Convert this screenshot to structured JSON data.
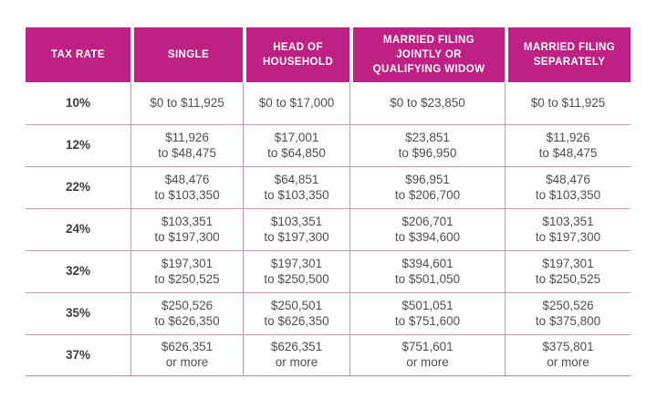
{
  "theme": {
    "accent": "#be2183",
    "header_text": "#ffffff",
    "body_text": "#4e4e4e",
    "rate_text": "#3d3d3d",
    "grid": "#cf94ba",
    "grid_dark": "#bc89a6"
  },
  "chart_data": {
    "type": "table",
    "columns": [
      "TAX RATE",
      "SINGLE",
      "HEAD OF\nHOUSEHOLD",
      "MARRIED FILING\nJOINTLY OR\nQUALIFYING WIDOW",
      "MARRIED FILING\nSEPARATELY"
    ],
    "rows": [
      [
        "10%",
        "$0 to $11,925",
        "$0 to $17,000",
        "$0 to $23,850",
        "$0 to $11,925"
      ],
      [
        "12%",
        "$11,926\nto $48,475",
        "$17,001\nto $64,850",
        "$23,851\nto $96,950",
        "$11,926\nto $48,475"
      ],
      [
        "22%",
        "$48,476\nto $103,350",
        "$64,851\nto $103,350",
        "$96,951\nto $206,700",
        "$48,476\nto $103,350"
      ],
      [
        "24%",
        "$103,351\nto $197,300",
        "$103,351\nto $197,300",
        "$206,701\nto $394,600",
        "$103,351\nto $197,300"
      ],
      [
        "32%",
        "$197,301\nto $250,525",
        "$197,301\nto $250,500",
        "$394,601\nto $501,050",
        "$197,301\nto $250,525"
      ],
      [
        "35%",
        "$250,526\nto $626,350",
        "$250,501\nto $626,350",
        "$501,051\nto $751,600",
        "$250,526\nto $375,800"
      ],
      [
        "37%",
        "$626,351\nor more",
        "$626,351\nor more",
        "$751,601\nor more",
        "$375,801\nor more"
      ]
    ]
  }
}
